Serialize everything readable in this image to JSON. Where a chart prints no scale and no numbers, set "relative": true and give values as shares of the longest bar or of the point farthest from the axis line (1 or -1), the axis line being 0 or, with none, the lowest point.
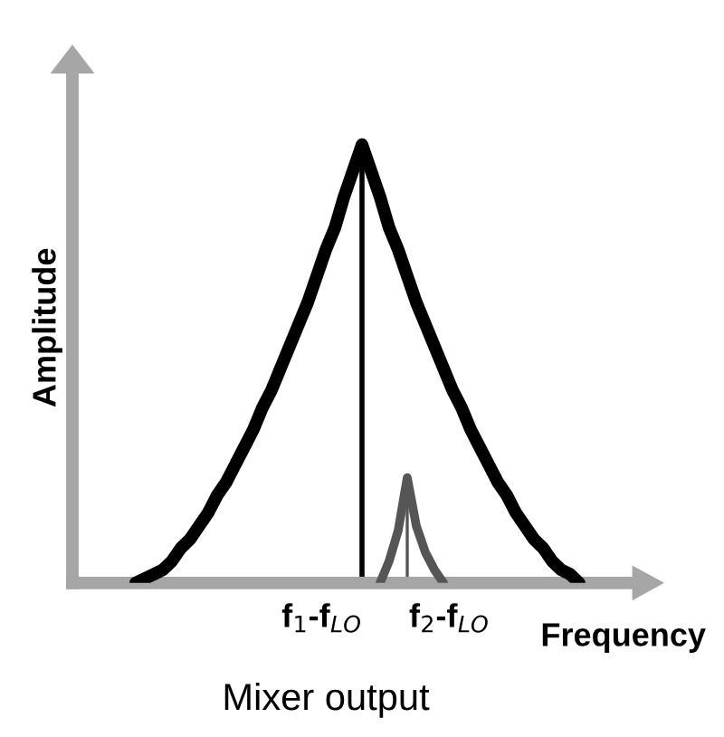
{
  "chart_data": {
    "type": "line",
    "relative": true,
    "xlabel": "Frequency",
    "ylabel": "Amplitude",
    "annotations": [
      "f$_{1}$-f$_{LO}$",
      "f$_{2}$-f$_{LO}$",
      "Mixer output"
    ],
    "legend": false,
    "categories": [
      null,
      null,
      null,
      null,
      null,
      null,
      null,
      null,
      null,
      null,
      null,
      null,
      null,
      null,
      null,
      null,
      null,
      null,
      null,
      null,
      null,
      null,
      null,
      null,
      null,
      null,
      null,
      null,
      null,
      null,
      null,
      null,
      null,
      null,
      null,
      null,
      null,
      null,
      null,
      null,
      null,
      null,
      null,
      null,
      null,
      null,
      null,
      null,
      null,
      null
    ],
    "series": [
      {
        "color": "#000000",
        "values": [
          0,
          0.01,
          0.02,
          0.03,
          0.05,
          0.08,
          0.1,
          0.13,
          0.16,
          0.2,
          0.23,
          0.27,
          0.31,
          0.35,
          0.4,
          0.44,
          0.49,
          0.54,
          0.59,
          0.64,
          0.7,
          0.76,
          0.81,
          0.88,
          0.94,
          1,
          0.94,
          0.88,
          0.81,
          0.76,
          0.7,
          0.64,
          0.59,
          0.54,
          0.49,
          0.44,
          0.4,
          0.35,
          0.31,
          0.27,
          0.23,
          0.2,
          0.16,
          0.13,
          0.1,
          0.08,
          0.05,
          0.03,
          0.02,
          0
        ]
      },
      {
        "color": "#555555",
        "values": [
          null,
          null,
          null,
          null,
          null,
          null,
          null,
          null,
          null,
          null,
          null,
          null,
          null,
          null,
          null,
          null,
          null,
          null,
          null,
          null,
          null,
          null,
          null,
          null,
          null,
          null,
          null,
          0,
          0.05,
          0.12,
          0.24,
          0.13,
          0.07,
          0.03,
          0,
          null,
          null,
          null,
          null,
          null,
          null,
          null,
          null,
          null,
          null,
          null,
          null,
          null,
          null,
          null
        ]
      }
    ]
  }
}
